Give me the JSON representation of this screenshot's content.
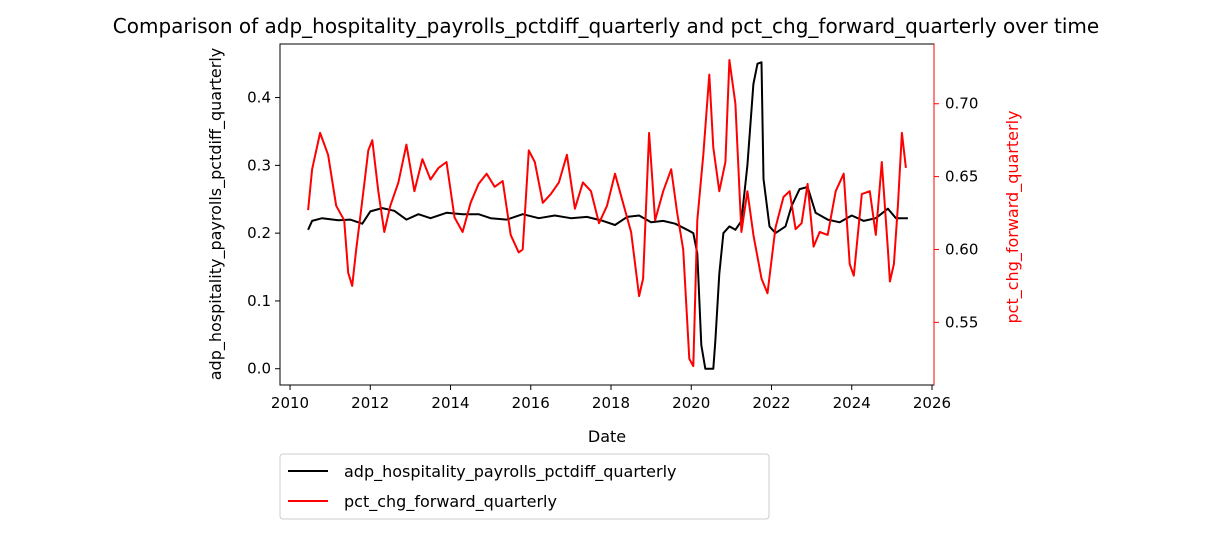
{
  "chart_data": {
    "type": "line",
    "title": "Comparison of adp_hospitality_payrolls_pctdiff_quarterly and pct_chg_forward_quarterly over time",
    "xlabel": "Date",
    "ylabel_left": "adp_hospitality_payrolls_pctdiff_quarterly",
    "ylabel_right": "pct_chg_forward_quarterly",
    "xlim": [
      2009.75,
      2026.05
    ],
    "ylim_left": [
      -0.024,
      0.479
    ],
    "ylim_right": [
      0.507,
      0.741
    ],
    "xticks": [
      "2010",
      "2012",
      "2014",
      "2016",
      "2018",
      "2020",
      "2022",
      "2024",
      "2026"
    ],
    "yticks_left": [
      "0.0",
      "0.1",
      "0.2",
      "0.3",
      "0.4"
    ],
    "yticks_right": [
      "0.55",
      "0.60",
      "0.65",
      "0.70"
    ],
    "legend_position": "below-left",
    "grid": false,
    "colors": {
      "series_left": "#000000",
      "series_right": "#ff0000",
      "right_axis": "#ff0000"
    },
    "series": [
      {
        "name": "adp_hospitality_payrolls_pctdiff_quarterly",
        "axis": "left",
        "color": "#000000",
        "points": [
          [
            2010.45,
            0.205
          ],
          [
            2010.55,
            0.218
          ],
          [
            2010.8,
            0.222
          ],
          [
            2011.2,
            0.219
          ],
          [
            2011.5,
            0.22
          ],
          [
            2011.8,
            0.214
          ],
          [
            2012.0,
            0.232
          ],
          [
            2012.3,
            0.237
          ],
          [
            2012.6,
            0.233
          ],
          [
            2012.9,
            0.22
          ],
          [
            2013.2,
            0.228
          ],
          [
            2013.5,
            0.222
          ],
          [
            2013.9,
            0.23
          ],
          [
            2014.3,
            0.228
          ],
          [
            2014.7,
            0.228
          ],
          [
            2015.0,
            0.222
          ],
          [
            2015.4,
            0.22
          ],
          [
            2015.8,
            0.228
          ],
          [
            2016.2,
            0.222
          ],
          [
            2016.6,
            0.226
          ],
          [
            2017.0,
            0.222
          ],
          [
            2017.4,
            0.224
          ],
          [
            2017.8,
            0.218
          ],
          [
            2018.1,
            0.212
          ],
          [
            2018.4,
            0.224
          ],
          [
            2018.7,
            0.226
          ],
          [
            2019.0,
            0.216
          ],
          [
            2019.3,
            0.218
          ],
          [
            2019.6,
            0.214
          ],
          [
            2019.9,
            0.205
          ],
          [
            2020.05,
            0.2
          ],
          [
            2020.15,
            0.17
          ],
          [
            2020.25,
            0.035
          ],
          [
            2020.35,
            0.0
          ],
          [
            2020.55,
            0.0
          ],
          [
            2020.6,
            0.04
          ],
          [
            2020.7,
            0.14
          ],
          [
            2020.8,
            0.2
          ],
          [
            2020.95,
            0.21
          ],
          [
            2021.1,
            0.205
          ],
          [
            2021.25,
            0.218
          ],
          [
            2021.4,
            0.3
          ],
          [
            2021.55,
            0.42
          ],
          [
            2021.65,
            0.45
          ],
          [
            2021.75,
            0.452
          ],
          [
            2021.8,
            0.28
          ],
          [
            2021.95,
            0.21
          ],
          [
            2022.1,
            0.2
          ],
          [
            2022.35,
            0.21
          ],
          [
            2022.5,
            0.24
          ],
          [
            2022.7,
            0.265
          ],
          [
            2022.9,
            0.268
          ],
          [
            2023.1,
            0.23
          ],
          [
            2023.4,
            0.22
          ],
          [
            2023.7,
            0.216
          ],
          [
            2024.0,
            0.226
          ],
          [
            2024.3,
            0.218
          ],
          [
            2024.6,
            0.222
          ],
          [
            2024.9,
            0.236
          ],
          [
            2025.1,
            0.222
          ],
          [
            2025.4,
            0.222
          ]
        ]
      },
      {
        "name": "pct_chg_forward_quarterly",
        "axis": "right",
        "color": "#ff0000",
        "points": [
          [
            2010.45,
            0.627
          ],
          [
            2010.55,
            0.655
          ],
          [
            2010.75,
            0.68
          ],
          [
            2010.95,
            0.665
          ],
          [
            2011.15,
            0.63
          ],
          [
            2011.35,
            0.62
          ],
          [
            2011.45,
            0.584
          ],
          [
            2011.55,
            0.575
          ],
          [
            2011.65,
            0.6
          ],
          [
            2011.75,
            0.622
          ],
          [
            2011.85,
            0.645
          ],
          [
            2011.95,
            0.668
          ],
          [
            2012.05,
            0.675
          ],
          [
            2012.2,
            0.64
          ],
          [
            2012.35,
            0.612
          ],
          [
            2012.5,
            0.63
          ],
          [
            2012.7,
            0.646
          ],
          [
            2012.9,
            0.672
          ],
          [
            2013.1,
            0.64
          ],
          [
            2013.3,
            0.662
          ],
          [
            2013.5,
            0.648
          ],
          [
            2013.7,
            0.656
          ],
          [
            2013.9,
            0.66
          ],
          [
            2014.1,
            0.622
          ],
          [
            2014.3,
            0.612
          ],
          [
            2014.5,
            0.632
          ],
          [
            2014.7,
            0.645
          ],
          [
            2014.9,
            0.652
          ],
          [
            2015.1,
            0.643
          ],
          [
            2015.3,
            0.647
          ],
          [
            2015.5,
            0.61
          ],
          [
            2015.7,
            0.598
          ],
          [
            2015.8,
            0.6
          ],
          [
            2015.95,
            0.668
          ],
          [
            2016.1,
            0.66
          ],
          [
            2016.3,
            0.632
          ],
          [
            2016.5,
            0.638
          ],
          [
            2016.7,
            0.646
          ],
          [
            2016.9,
            0.665
          ],
          [
            2017.1,
            0.628
          ],
          [
            2017.3,
            0.646
          ],
          [
            2017.5,
            0.64
          ],
          [
            2017.7,
            0.618
          ],
          [
            2017.9,
            0.63
          ],
          [
            2018.1,
            0.652
          ],
          [
            2018.3,
            0.632
          ],
          [
            2018.5,
            0.612
          ],
          [
            2018.7,
            0.568
          ],
          [
            2018.8,
            0.58
          ],
          [
            2018.95,
            0.68
          ],
          [
            2019.1,
            0.62
          ],
          [
            2019.3,
            0.64
          ],
          [
            2019.5,
            0.655
          ],
          [
            2019.65,
            0.625
          ],
          [
            2019.8,
            0.6
          ],
          [
            2019.95,
            0.525
          ],
          [
            2020.05,
            0.52
          ],
          [
            2020.15,
            0.62
          ],
          [
            2020.3,
            0.665
          ],
          [
            2020.45,
            0.72
          ],
          [
            2020.55,
            0.67
          ],
          [
            2020.7,
            0.64
          ],
          [
            2020.85,
            0.66
          ],
          [
            2020.95,
            0.73
          ],
          [
            2021.1,
            0.7
          ],
          [
            2021.25,
            0.612
          ],
          [
            2021.4,
            0.64
          ],
          [
            2021.55,
            0.61
          ],
          [
            2021.75,
            0.58
          ],
          [
            2021.9,
            0.57
          ],
          [
            2022.1,
            0.615
          ],
          [
            2022.3,
            0.636
          ],
          [
            2022.45,
            0.64
          ],
          [
            2022.6,
            0.614
          ],
          [
            2022.75,
            0.618
          ],
          [
            2022.9,
            0.645
          ],
          [
            2023.05,
            0.602
          ],
          [
            2023.2,
            0.612
          ],
          [
            2023.4,
            0.61
          ],
          [
            2023.6,
            0.64
          ],
          [
            2023.8,
            0.652
          ],
          [
            2023.95,
            0.59
          ],
          [
            2024.05,
            0.582
          ],
          [
            2024.25,
            0.638
          ],
          [
            2024.45,
            0.64
          ],
          [
            2024.6,
            0.61
          ],
          [
            2024.75,
            0.66
          ],
          [
            2024.9,
            0.6
          ],
          [
            2024.95,
            0.578
          ],
          [
            2025.05,
            0.59
          ],
          [
            2025.15,
            0.63
          ],
          [
            2025.25,
            0.68
          ],
          [
            2025.35,
            0.656
          ]
        ]
      }
    ]
  }
}
